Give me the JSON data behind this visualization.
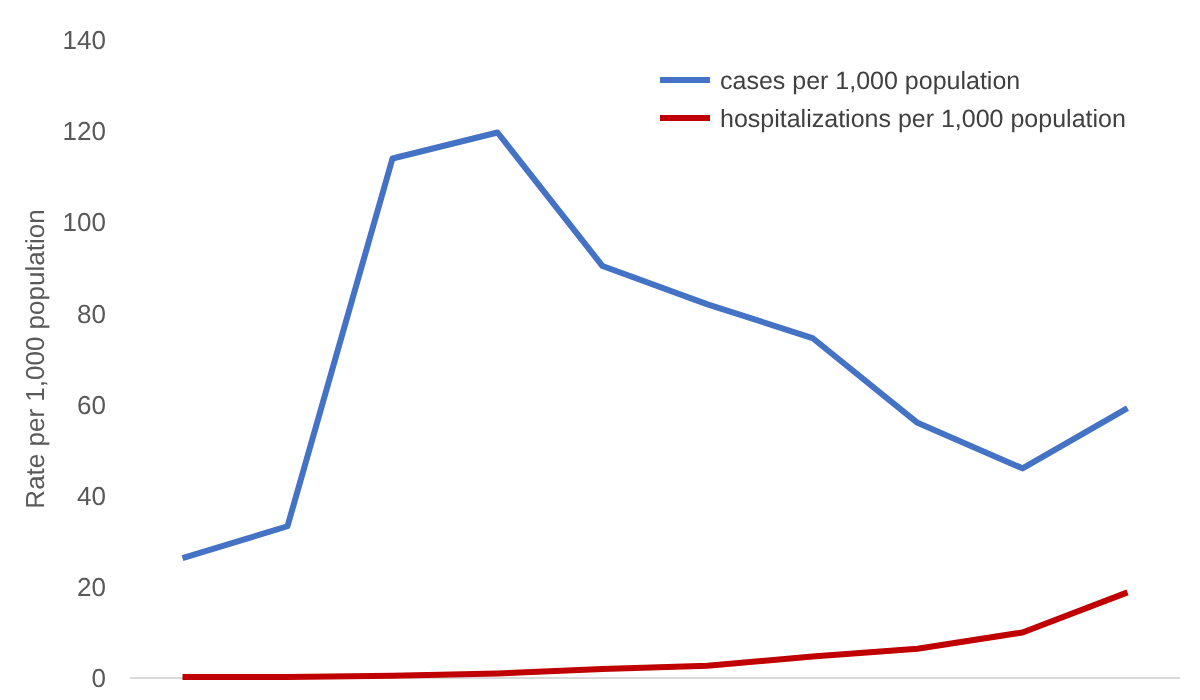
{
  "chart_data": {
    "type": "line",
    "ylabel": "Rate per 1,000 population",
    "categories": [
      null,
      null,
      null,
      null,
      null,
      null,
      null,
      null,
      null,
      null
    ],
    "series": [
      {
        "name": "cases per 1,000 population",
        "color": "#4472c4",
        "values": [
          26.3,
          33.3,
          114,
          119.7,
          90.4,
          82,
          74.6,
          56,
          46,
          59.2
        ]
      },
      {
        "name": "hospitalizations per 1,000 population",
        "color": "#c00000",
        "values": [
          0.2,
          0.2,
          0.5,
          1,
          2,
          2.7,
          4.7,
          6.4,
          10,
          18.8
        ]
      }
    ],
    "ylim": [
      0,
      140
    ],
    "yticks": [
      0,
      20,
      40,
      60,
      80,
      100,
      120,
      140
    ],
    "grid": false,
    "legend": "top right",
    "marker": "none",
    "line_style": "solid"
  }
}
